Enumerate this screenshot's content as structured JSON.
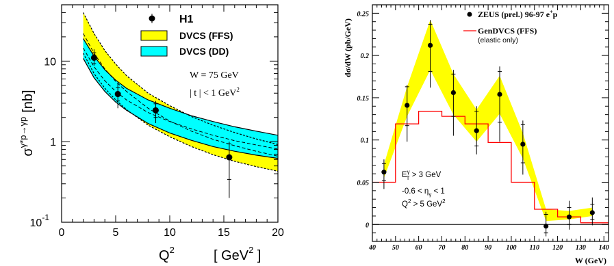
{
  "chart_data": [
    {
      "type": "scatter",
      "panel": "left",
      "ylabel_parts": {
        "sigma": "σ",
        "sup": "γ*p→γp",
        "unit": "[nb]"
      },
      "xlabel_parts": {
        "q": "Q",
        "q_sup": "2",
        "unit_open": "[ GeV",
        "unit_sup": "2",
        "unit_close": " ]"
      },
      "log_y": true,
      "xlim": [
        0,
        20
      ],
      "ylim": [
        0.1,
        50
      ],
      "x_ticks": [
        "0",
        "5",
        "10",
        "15",
        "20"
      ],
      "y_ticks": [
        {
          "value": 10,
          "label": "10"
        },
        {
          "value": 1,
          "label": "1"
        },
        {
          "value": 0.1,
          "label": "10",
          "sup": "-1"
        }
      ],
      "legend": [
        {
          "label": "H1",
          "kind": "marker"
        },
        {
          "label": "DVCS (FFS)",
          "kind": "band",
          "color": "#ffff00"
        },
        {
          "label": "DVCS (DD)",
          "kind": "band",
          "color": "#00ffff"
        }
      ],
      "annotations": {
        "w": "W = 75 GeV",
        "t_main": "| t | < 1 GeV",
        "t_sup": "2"
      },
      "series": [
        {
          "name": "H1",
          "points": [
            {
              "x": 3.0,
              "y": 11.0,
              "stat": [
                9.3,
                12.7
              ],
              "tot": [
                8.8,
                14.0
              ]
            },
            {
              "x": 5.2,
              "y": 3.9,
              "stat": [
                3.2,
                4.7
              ],
              "tot": [
                2.6,
                5.4
              ]
            },
            {
              "x": 8.7,
              "y": 2.45,
              "stat": [
                2.0,
                2.95
              ],
              "tot": [
                1.7,
                3.2
              ]
            },
            {
              "x": 15.5,
              "y": 0.64,
              "stat": [
                0.34,
                0.94
              ],
              "tot": [
                0.2,
                1.0
              ]
            }
          ]
        }
      ],
      "bands": {
        "ffs_upper": [
          [
            2,
            40
          ],
          [
            3,
            22
          ],
          [
            4,
            13.5
          ],
          [
            5,
            9.2
          ],
          [
            6,
            6.6
          ],
          [
            8,
            4.0
          ],
          [
            10,
            2.8
          ],
          [
            12,
            2.05
          ],
          [
            14,
            1.6
          ],
          [
            16,
            1.3
          ],
          [
            18,
            1.08
          ],
          [
            20,
            0.92
          ]
        ],
        "ffs_lower": [
          [
            2,
            12.5
          ],
          [
            3,
            7.0
          ],
          [
            4,
            4.6
          ],
          [
            5,
            3.3
          ],
          [
            6,
            2.5
          ],
          [
            8,
            1.6
          ],
          [
            10,
            1.15
          ],
          [
            12,
            0.87
          ],
          [
            14,
            0.69
          ],
          [
            16,
            0.57
          ],
          [
            18,
            0.49
          ],
          [
            20,
            0.43
          ]
        ],
        "dd_upper": [
          [
            2,
            19
          ],
          [
            3,
            11.5
          ],
          [
            4,
            7.8
          ],
          [
            5,
            5.8
          ],
          [
            6,
            4.6
          ],
          [
            8,
            3.3
          ],
          [
            10,
            2.6
          ],
          [
            12,
            2.1
          ],
          [
            14,
            1.78
          ],
          [
            16,
            1.53
          ],
          [
            18,
            1.35
          ],
          [
            20,
            1.2
          ]
        ],
        "dd_lower": [
          [
            2,
            10.8
          ],
          [
            3,
            6.2
          ],
          [
            4,
            4.2
          ],
          [
            5,
            3.1
          ],
          [
            6,
            2.45
          ],
          [
            8,
            1.68
          ],
          [
            10,
            1.28
          ],
          [
            12,
            1.04
          ],
          [
            14,
            0.87
          ],
          [
            16,
            0.76
          ],
          [
            18,
            0.68
          ],
          [
            20,
            0.62
          ]
        ],
        "ffs_central": [
          [
            2,
            22
          ],
          [
            3,
            12.5
          ],
          [
            4,
            8.0
          ],
          [
            5,
            5.6
          ],
          [
            6,
            4.2
          ],
          [
            8,
            2.6
          ],
          [
            10,
            1.8
          ],
          [
            12,
            1.35
          ],
          [
            14,
            1.07
          ],
          [
            16,
            0.89
          ],
          [
            18,
            0.76
          ],
          [
            20,
            0.66
          ]
        ],
        "dd_central": [
          [
            2,
            14.5
          ],
          [
            3,
            8.5
          ],
          [
            4,
            5.7
          ],
          [
            5,
            4.2
          ],
          [
            6,
            3.3
          ],
          [
            8,
            2.3
          ],
          [
            10,
            1.78
          ],
          [
            12,
            1.44
          ],
          [
            14,
            1.2
          ],
          [
            16,
            1.03
          ],
          [
            18,
            0.91
          ],
          [
            20,
            0.81
          ]
        ]
      },
      "colors": {
        "ffs": "#ffff00",
        "dd": "#00ffff",
        "points": "#000000"
      }
    },
    {
      "type": "line",
      "panel": "right",
      "ylabel": "dσ/dW (pb/GeV)",
      "xlabel": "W (GeV)",
      "xlim": [
        40,
        142
      ],
      "ylim": [
        -0.02,
        0.26
      ],
      "x_ticks": [
        "40",
        "50",
        "60",
        "70",
        "80",
        "90",
        "100",
        "110",
        "120",
        "130",
        "140"
      ],
      "y_ticks": [
        {
          "value": 0,
          "label": "0"
        },
        {
          "value": 0.05,
          "label": "0.05"
        },
        {
          "value": 0.1,
          "label": "0.1"
        },
        {
          "value": 0.15,
          "label": "0.15"
        },
        {
          "value": 0.2,
          "label": "0.2"
        },
        {
          "value": 0.25,
          "label": "0.25"
        }
      ],
      "legend": [
        {
          "label": "ZEUS (prel.) 96-97 e",
          "sup": "+",
          "tail": "p",
          "kind": "marker"
        },
        {
          "label": "GenDVCS (FFS)",
          "kind": "line",
          "color": "#ff0000"
        },
        {
          "label": "(elastic only)",
          "kind": "note"
        }
      ],
      "annotations": {
        "cut1_main": "E",
        "cut1_sup": "γ",
        "cut1_sub": "T",
        "cut1_tail": " > 3 GeV",
        "cut2_main": "-0.6 < η",
        "cut2_sub": "γ",
        "cut2_tail": " < 1",
        "cut3_main": "Q",
        "cut3_sup": "2",
        "cut3_tail": " > 5 GeV",
        "cut3_sup2": "2"
      },
      "series": [
        {
          "name": "ZEUS (prel.) 96-97 e+p",
          "points": [
            {
              "x": 45,
              "y": 0.062,
              "stat": [
                0.052,
                0.072
              ],
              "tot": [
                0.042,
                0.077
              ]
            },
            {
              "x": 55,
              "y": 0.141,
              "stat": [
                0.117,
                0.163
              ],
              "tot": [
                0.098,
                0.165
              ]
            },
            {
              "x": 65,
              "y": 0.212,
              "stat": [
                0.181,
                0.237
              ],
              "tot": [
                0.162,
                0.242
              ]
            },
            {
              "x": 75,
              "y": 0.156,
              "stat": [
                0.128,
                0.178
              ],
              "tot": [
                0.105,
                0.183
              ]
            },
            {
              "x": 85,
              "y": 0.111,
              "stat": [
                0.093,
                0.134
              ],
              "tot": [
                0.083,
                0.14
              ]
            },
            {
              "x": 95,
              "y": 0.154,
              "stat": [
                0.121,
                0.181
              ],
              "tot": [
                0.098,
                0.187
              ]
            },
            {
              "x": 105,
              "y": 0.095,
              "stat": [
                0.073,
                0.118
              ],
              "tot": [
                0.059,
                0.123
              ]
            },
            {
              "x": 115,
              "y": -0.002,
              "stat": [
                -0.01,
                0.012
              ],
              "tot": [
                -0.014,
                0.015
              ]
            },
            {
              "x": 125,
              "y": 0.009,
              "stat": [
                0.0,
                0.02
              ],
              "tot": [
                -0.006,
                0.028
              ]
            },
            {
              "x": 135,
              "y": 0.014,
              "stat": [
                0.006,
                0.024
              ],
              "tot": [
                -0.001,
                0.032
              ]
            }
          ]
        },
        {
          "name": "GenDVCS (FFS)",
          "steps": [
            {
              "x0": 40,
              "x1": 50,
              "y": 0.05
            },
            {
              "x0": 50,
              "x1": 60,
              "y": 0.119
            },
            {
              "x0": 60,
              "x1": 70,
              "y": 0.134
            },
            {
              "x0": 70,
              "x1": 80,
              "y": 0.128
            },
            {
              "x0": 80,
              "x1": 90,
              "y": 0.119
            },
            {
              "x0": 90,
              "x1": 100,
              "y": 0.097
            },
            {
              "x0": 100,
              "x1": 110,
              "y": 0.05
            },
            {
              "x0": 110,
              "x1": 120,
              "y": 0.018
            },
            {
              "x0": 120,
              "x1": 130,
              "y": 0.009
            },
            {
              "x0": 130,
              "x1": 142,
              "y": 0.002
            }
          ]
        }
      ],
      "systematic_band": {
        "upper": [
          [
            45,
            0.071
          ],
          [
            55,
            0.163
          ],
          [
            65,
            0.242
          ],
          [
            75,
            0.178
          ],
          [
            85,
            0.136
          ],
          [
            95,
            0.176
          ],
          [
            105,
            0.108
          ],
          [
            115,
            0.018
          ],
          [
            125,
            0.016
          ],
          [
            135,
            0.02
          ]
        ],
        "lower": [
          [
            45,
            0.055
          ],
          [
            55,
            0.128
          ],
          [
            65,
            0.183
          ],
          [
            75,
            0.13
          ],
          [
            85,
            0.098
          ],
          [
            95,
            0.131
          ],
          [
            105,
            0.078
          ],
          [
            115,
            0.004
          ],
          [
            125,
            0.006
          ],
          [
            135,
            0.01
          ]
        ]
      },
      "colors": {
        "band": "#ffff00",
        "model": "#ff0000",
        "points": "#000000"
      }
    }
  ]
}
